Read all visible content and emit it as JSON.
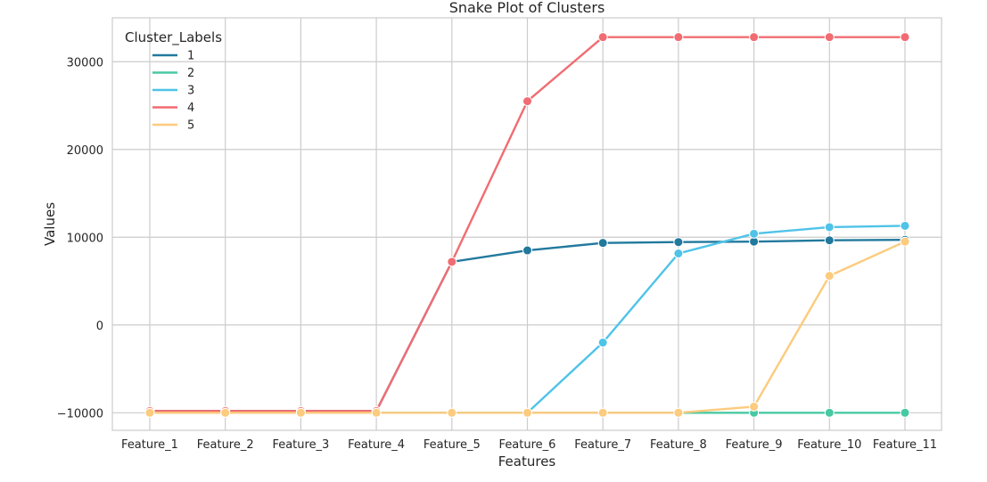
{
  "chart_data": {
    "type": "line",
    "title": "Snake Plot of Clusters",
    "xlabel": "Features",
    "ylabel": "Values",
    "categories": [
      "Feature_1",
      "Feature_2",
      "Feature_3",
      "Feature_4",
      "Feature_5",
      "Feature_6",
      "Feature_7",
      "Feature_8",
      "Feature_9",
      "Feature_10",
      "Feature_11"
    ],
    "ylim": [
      -12000,
      35000
    ],
    "yticks": [
      -10000,
      0,
      10000,
      20000,
      30000
    ],
    "ytick_labels": [
      "−10000",
      "0",
      "10000",
      "20000",
      "30000"
    ],
    "grid": true,
    "legend": {
      "title": "Cluster_Labels",
      "placement": "top-left"
    },
    "series": [
      {
        "name": "1",
        "color": "#21799d",
        "values": [
          -9800,
          -9800,
          -9800,
          -9800,
          7200,
          8500,
          9350,
          9450,
          9500,
          9650,
          9700
        ]
      },
      {
        "name": "2",
        "color": "#48c9a3",
        "values": [
          -10000,
          -10000,
          -10000,
          -10000,
          -10000,
          -10000,
          -10000,
          -10000,
          -10000,
          -10000,
          -10000
        ]
      },
      {
        "name": "3",
        "color": "#4fc3e8",
        "values": [
          -10000,
          -10000,
          -10000,
          -10000,
          -10000,
          -10000,
          -2000,
          8150,
          10400,
          11150,
          11300
        ]
      },
      {
        "name": "4",
        "color": "#f16c72",
        "values": [
          -9800,
          -9800,
          -9800,
          -9800,
          7200,
          25500,
          32800,
          32800,
          32800,
          32800,
          32800
        ]
      },
      {
        "name": "5",
        "color": "#fccb7e",
        "values": [
          -10000,
          -10000,
          -10000,
          -10000,
          -10000,
          -10000,
          -10000,
          -10000,
          -9300,
          5600,
          9500
        ]
      }
    ]
  }
}
